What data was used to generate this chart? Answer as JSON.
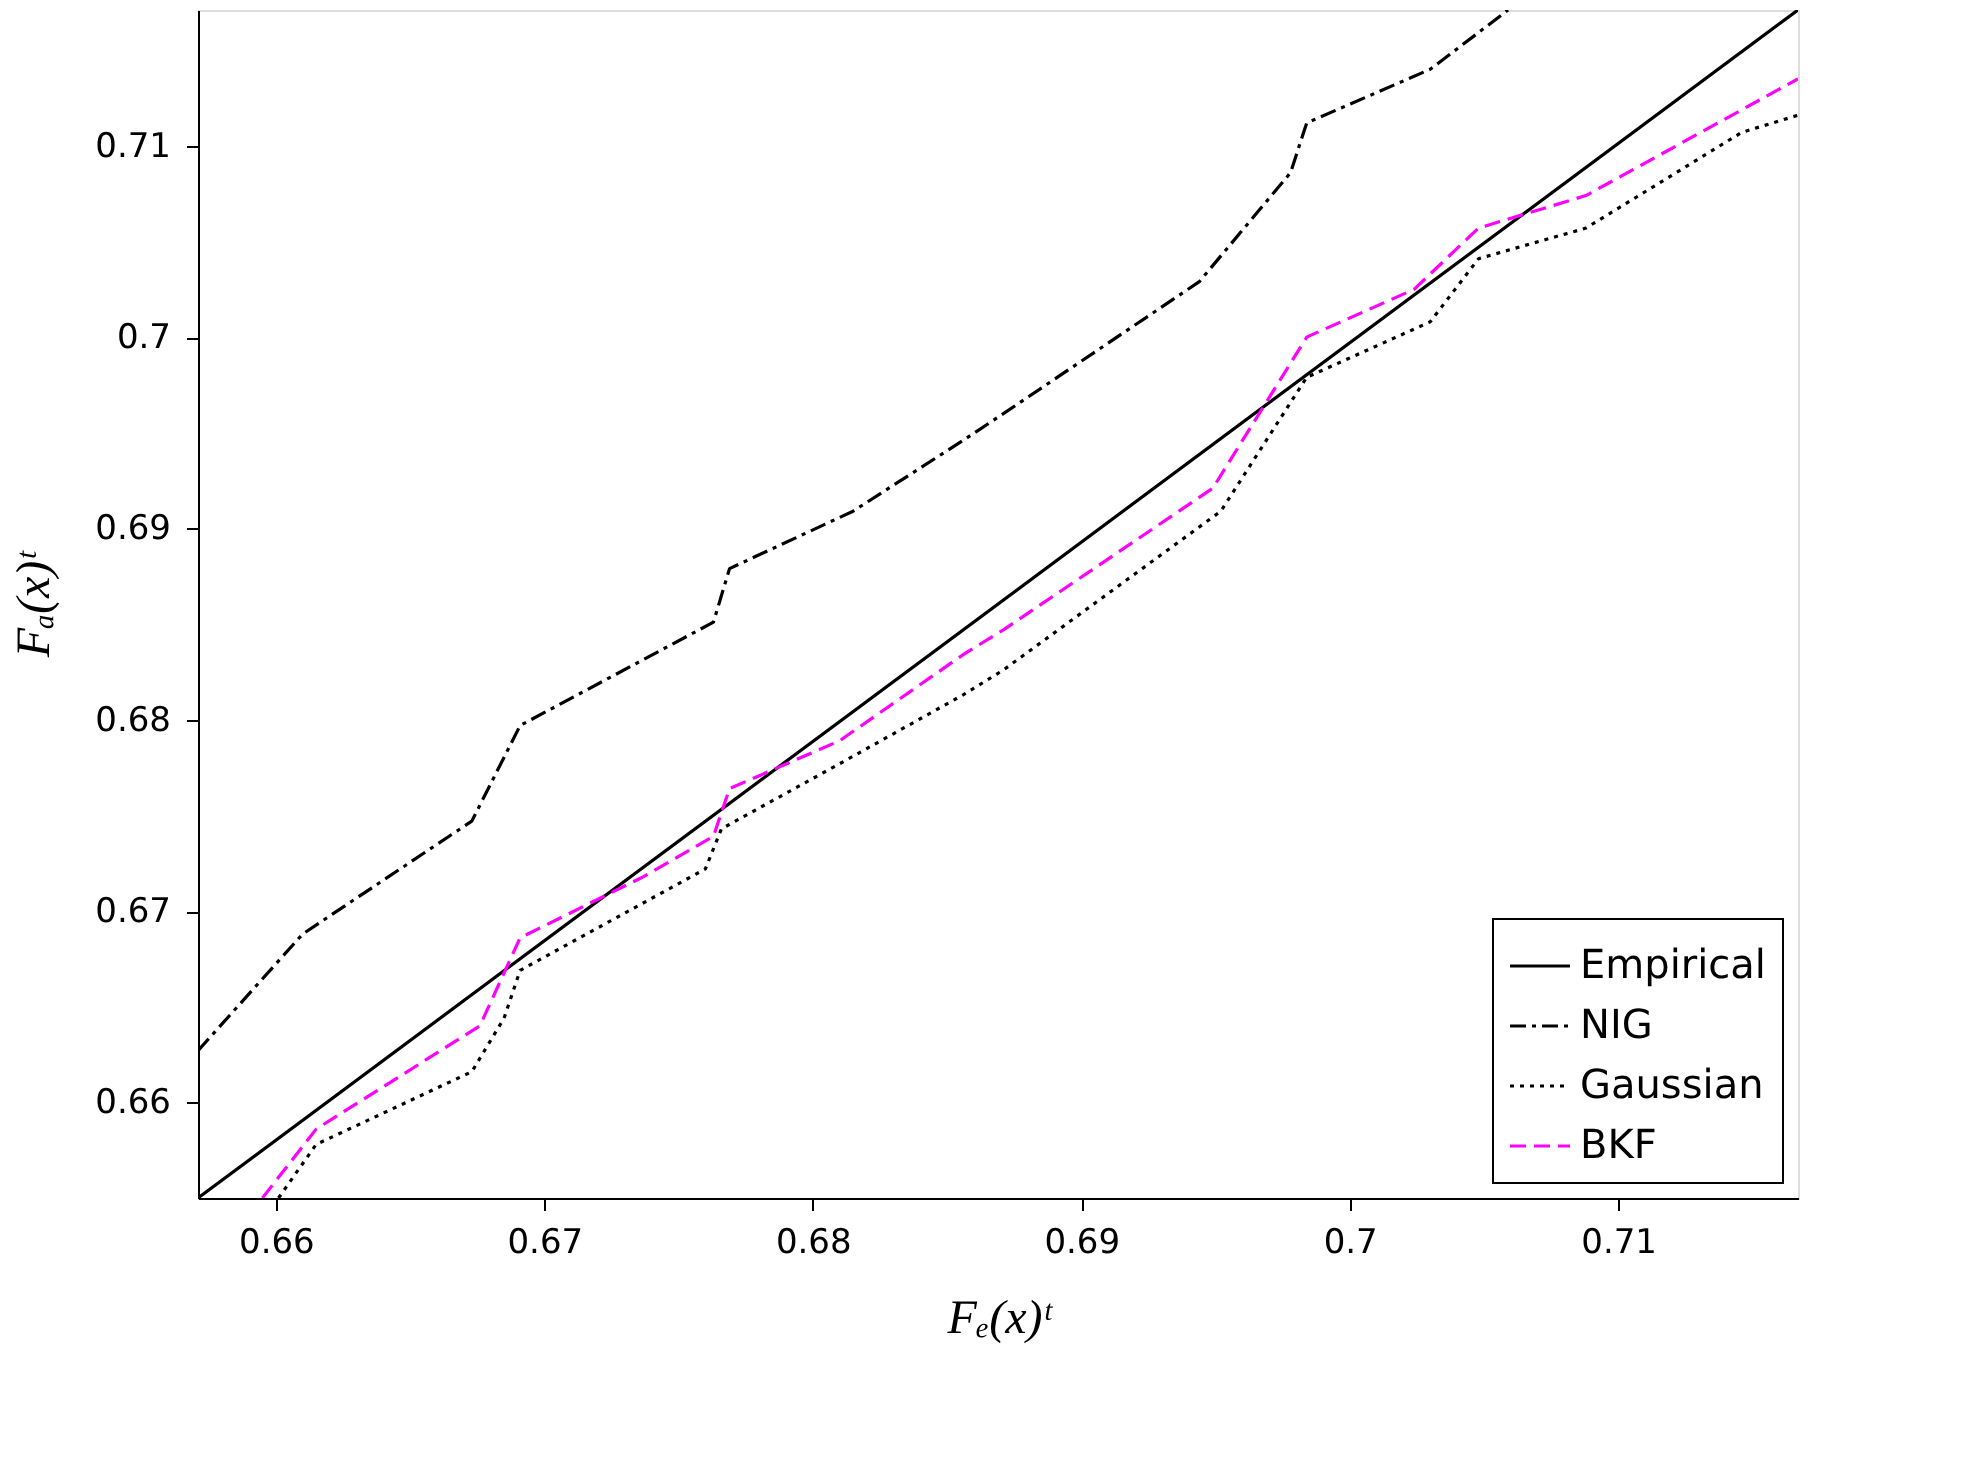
{
  "chart_data": {
    "type": "line",
    "xlabel": "Fₑ(x)ᵗ",
    "ylabel": "Fₐ(x)ᵗ",
    "xlim": [
      0.6571,
      0.7167
    ],
    "ylim": [
      0.655,
      0.7171
    ],
    "xticks": [
      0.66,
      0.67,
      0.68,
      0.69,
      0.7,
      0.71
    ],
    "yticks": [
      0.66,
      0.67,
      0.68,
      0.69,
      0.7,
      0.71
    ],
    "grid": false,
    "legend": "bottom right",
    "marker": "none",
    "series": [
      {
        "name": "Empirical",
        "color": "#000000",
        "line_style": "solid",
        "x": [
          0.6571,
          0.7167
        ],
        "values": [
          0.655,
          0.7171
        ]
      },
      {
        "name": "NIG",
        "color": "#000000",
        "line_style": "dashdot",
        "x": [
          0.6571,
          0.661,
          0.6673,
          0.6691,
          0.6763,
          0.6769,
          0.6815,
          0.6856,
          0.6871,
          0.6944,
          0.6978,
          0.6984,
          0.703,
          0.7059
        ],
        "values": [
          0.6627,
          0.6688,
          0.6747,
          0.6797,
          0.6851,
          0.6879,
          0.6909,
          0.6946,
          0.696,
          0.7029,
          0.7086,
          0.7112,
          0.714,
          0.7171
        ]
      },
      {
        "name": "Gaussian",
        "color": "#000000",
        "line_style": "dotted",
        "x": [
          0.6601,
          0.6615,
          0.6673,
          0.6685,
          0.6691,
          0.676,
          0.6766,
          0.681,
          0.6856,
          0.6871,
          0.6952,
          0.6984,
          0.703,
          0.7048,
          0.7088,
          0.7146,
          0.7167
        ],
        "values": [
          0.655,
          0.6578,
          0.6616,
          0.6644,
          0.6669,
          0.6722,
          0.6743,
          0.6777,
          0.6813,
          0.6826,
          0.6909,
          0.6979,
          0.7008,
          0.7041,
          0.7057,
          0.7107,
          0.7116
        ]
      },
      {
        "name": "BKF",
        "color": "#ff00ff",
        "line_style": "dashed",
        "x": [
          0.6595,
          0.6615,
          0.6676,
          0.6691,
          0.6737,
          0.6763,
          0.6769,
          0.681,
          0.6856,
          0.6871,
          0.6949,
          0.6984,
          0.7024,
          0.7048,
          0.7088,
          0.7167
        ],
        "values": [
          0.655,
          0.6586,
          0.664,
          0.6686,
          0.6718,
          0.6739,
          0.6764,
          0.6789,
          0.6834,
          0.6847,
          0.6921,
          0.7,
          0.7025,
          0.7057,
          0.7074,
          0.7135
        ]
      }
    ]
  }
}
